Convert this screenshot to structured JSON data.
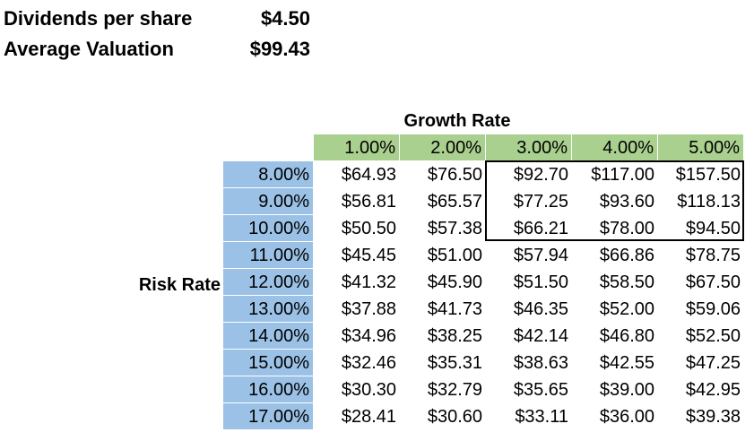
{
  "summary": {
    "dividends_label": "Dividends per share",
    "dividends_value": "$4.50",
    "valuation_label": "Average Valuation",
    "valuation_value": "$99.43"
  },
  "table": {
    "growth_title": "Growth Rate",
    "risk_title": "Risk Rate",
    "growth_rates": [
      "1.00%",
      "2.00%",
      "3.00%",
      "4.00%",
      "5.00%"
    ],
    "risk_rates": [
      "8.00%",
      "9.00%",
      "10.00%",
      "11.00%",
      "12.00%",
      "13.00%",
      "14.00%",
      "15.00%",
      "16.00%",
      "17.00%"
    ],
    "values": [
      [
        "$64.93",
        "$76.50",
        "$92.70",
        "$117.00",
        "$157.50"
      ],
      [
        "$56.81",
        "$65.57",
        "$77.25",
        "$93.60",
        "$118.13"
      ],
      [
        "$50.50",
        "$57.38",
        "$66.21",
        "$78.00",
        "$94.50"
      ],
      [
        "$45.45",
        "$51.00",
        "$57.94",
        "$66.86",
        "$78.75"
      ],
      [
        "$41.32",
        "$45.90",
        "$51.50",
        "$58.50",
        "$67.50"
      ],
      [
        "$37.88",
        "$41.73",
        "$46.35",
        "$52.00",
        "$59.06"
      ],
      [
        "$34.96",
        "$38.25",
        "$42.14",
        "$46.80",
        "$52.50"
      ],
      [
        "$32.46",
        "$35.31",
        "$38.63",
        "$42.55",
        "$47.25"
      ],
      [
        "$30.30",
        "$32.79",
        "$35.65",
        "$39.00",
        "$42.95"
      ],
      [
        "$28.41",
        "$30.60",
        "$33.11",
        "$36.00",
        "$39.38"
      ]
    ]
  },
  "colors": {
    "growth_header_fill": "#a9d08e",
    "risk_header_fill": "#9bc2e6",
    "highlight_border": "#000000"
  }
}
